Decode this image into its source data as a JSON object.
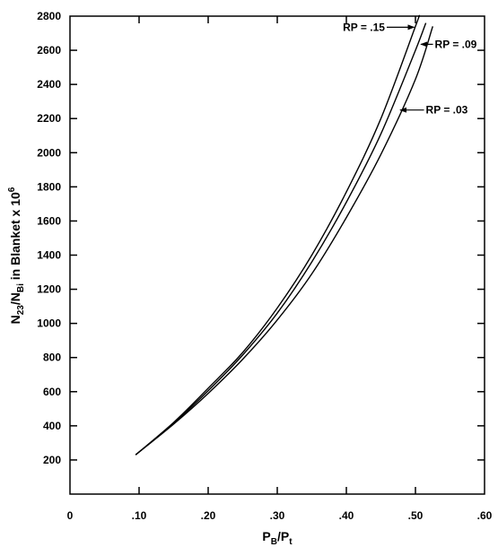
{
  "chart_data": {
    "type": "line",
    "xlabel": {
      "main": "P",
      "sub1": "B",
      "mid": "/P",
      "sub2": "t"
    },
    "ylabel": {
      "a": "N",
      "a_sub": "23",
      "b": "/N",
      "b_sub": "Bi",
      "c": " in Blanket x 10",
      "c_sup": "6"
    },
    "xlim": [
      0,
      0.6
    ],
    "ylim": [
      0,
      2800
    ],
    "x_ticks": [
      0,
      0.1,
      0.2,
      0.3,
      0.4,
      0.5,
      0.6
    ],
    "x_tick_labels": [
      "0",
      ".10",
      ".20",
      ".30",
      ".40",
      ".50",
      ".60"
    ],
    "y_ticks": [
      200,
      400,
      600,
      800,
      1000,
      1200,
      1400,
      1600,
      1800,
      2000,
      2200,
      2400,
      2600,
      2800
    ],
    "y_tick_labels": [
      "200",
      "400",
      "600",
      "800",
      "1000",
      "1200",
      "1400",
      "1600",
      "1800",
      "2000",
      "2200",
      "2400",
      "2600",
      "2800"
    ],
    "grid": false,
    "series": [
      {
        "name": "RP = .15",
        "x": [
          0.095,
          0.15,
          0.2,
          0.25,
          0.3,
          0.35,
          0.4,
          0.45,
          0.5,
          0.505
        ],
        "y": [
          230,
          420,
          620,
          830,
          1090,
          1400,
          1770,
          2200,
          2740,
          2800
        ]
      },
      {
        "name": "RP = .09",
        "x": [
          0.095,
          0.15,
          0.2,
          0.25,
          0.3,
          0.35,
          0.4,
          0.45,
          0.5,
          0.515
        ],
        "y": [
          230,
          415,
          605,
          815,
          1060,
          1360,
          1710,
          2110,
          2600,
          2760
        ]
      },
      {
        "name": "RP = .03",
        "x": [
          0.095,
          0.15,
          0.2,
          0.25,
          0.3,
          0.35,
          0.4,
          0.45,
          0.5,
          0.525
        ],
        "y": [
          230,
          410,
          590,
          790,
          1020,
          1290,
          1620,
          1990,
          2430,
          2740
        ]
      }
    ],
    "annotations": [
      {
        "text": "RP = .15",
        "series": 0,
        "label_at": [
          0.395,
          2735
        ],
        "arrow_to": [
          0.498,
          2735
        ],
        "anchor": "start"
      },
      {
        "text": "RP = .09",
        "series": 1,
        "label_at": [
          0.528,
          2635
        ],
        "arrow_to": [
          0.508,
          2635
        ],
        "anchor": "start"
      },
      {
        "text": "RP = .03",
        "series": 2,
        "label_at": [
          0.515,
          2250
        ],
        "arrow_to": [
          0.478,
          2250
        ],
        "anchor": "start"
      }
    ]
  }
}
